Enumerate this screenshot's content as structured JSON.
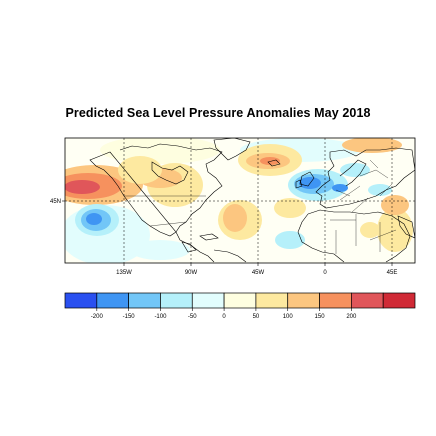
{
  "title": "Predicted Sea Level Pressure Anomalies May 2018",
  "lat_labels": [
    "45N"
  ],
  "lon_labels": [
    "135W",
    "90W",
    "45W",
    "0",
    "45E"
  ],
  "colorbar": {
    "tick_labels": [
      "-200",
      "-150",
      "-100",
      "-50",
      "0",
      "50",
      "100",
      "150",
      "200"
    ],
    "colors": [
      "#2a50f0",
      "#3f95f3",
      "#72c6f7",
      "#b5f0fa",
      "#e2fdfd",
      "#fefee0",
      "#fde9a0",
      "#fcc680",
      "#f6915e",
      "#e0565a",
      "#d02a36"
    ]
  },
  "map_palette": {
    "land": "#ffffff",
    "ocean_neutral": "#ffffff"
  }
}
